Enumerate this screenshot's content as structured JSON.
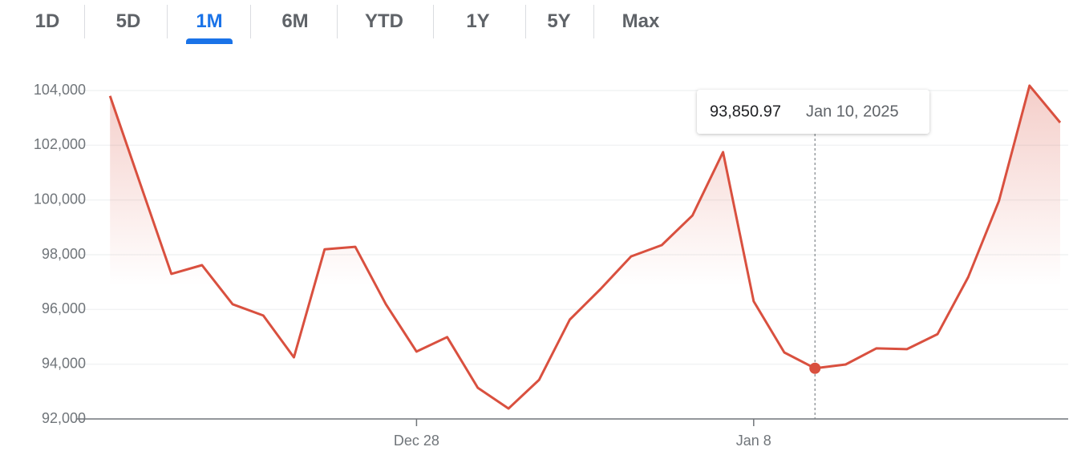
{
  "tabs": [
    "1D",
    "5D",
    "1M",
    "6M",
    "YTD",
    "1Y",
    "5Y",
    "Max"
  ],
  "active_tab": "1M",
  "chart_data": {
    "type": "line",
    "x": [
      "2024-12-18",
      "2024-12-19",
      "2024-12-20",
      "2024-12-21",
      "2024-12-22",
      "2024-12-23",
      "2024-12-24",
      "2024-12-25",
      "2024-12-26",
      "2024-12-27",
      "2024-12-28",
      "2024-12-29",
      "2024-12-30",
      "2024-12-31",
      "2025-01-01",
      "2025-01-02",
      "2025-01-03",
      "2025-01-04",
      "2025-01-05",
      "2025-01-06",
      "2025-01-07",
      "2025-01-08",
      "2025-01-09",
      "2025-01-10",
      "2025-01-11",
      "2025-01-12",
      "2025-01-13",
      "2025-01-14",
      "2025-01-15",
      "2025-01-16",
      "2025-01-17",
      "2025-01-18"
    ],
    "values": [
      103800,
      100550,
      97300,
      97620,
      96190,
      95780,
      94250,
      98200,
      98290,
      96190,
      94460,
      94990,
      93140,
      92380,
      93430,
      95630,
      96740,
      97940,
      98350,
      99430,
      101750,
      96300,
      94430,
      93850.97,
      93990,
      94580,
      94550,
      95100,
      97180,
      99960,
      104180,
      102830
    ],
    "color": "#d9503f",
    "xlim": [
      "2024-12-17",
      "2025-01-18"
    ],
    "xticks": [
      {
        "value": "2024-12-28",
        "label": "Dec 28"
      },
      {
        "value": "2025-01-08",
        "label": "Jan 8"
      }
    ],
    "ylim": [
      92000,
      104000
    ],
    "yticks": [
      {
        "value": 92000,
        "label": "92,000"
      },
      {
        "value": 94000,
        "label": "94,000"
      },
      {
        "value": 96000,
        "label": "96,000"
      },
      {
        "value": 98000,
        "label": "98,000"
      },
      {
        "value": 100000,
        "label": "100,000"
      },
      {
        "value": 102000,
        "label": "102,000"
      },
      {
        "value": 104000,
        "label": "104,000"
      }
    ],
    "grid": true,
    "tooltip": {
      "index": 23,
      "value_label": "93,850.97",
      "date_label": "Jan 10, 2025"
    }
  }
}
